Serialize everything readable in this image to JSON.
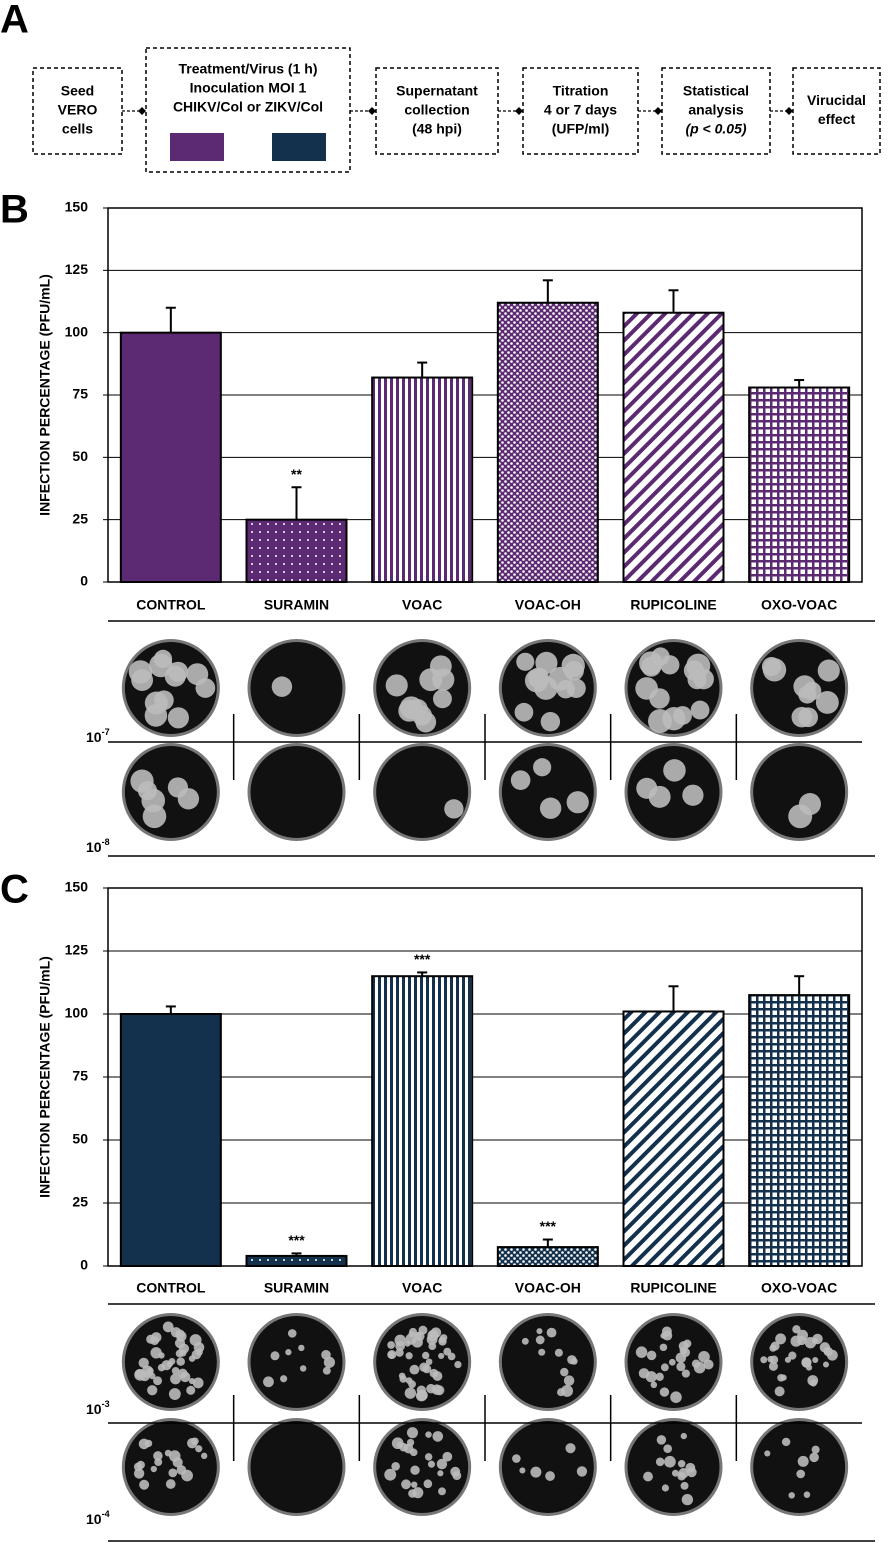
{
  "panel_labels": [
    "A",
    "B",
    "C"
  ],
  "workflow": {
    "steps": [
      {
        "lines": [
          "Seed",
          "VERO",
          "cells"
        ]
      },
      {
        "lines": [
          "Treatment/Virus (1 h)",
          "Inoculation MOI 1",
          "CHIKV/Col or ZIKV/Col"
        ]
      },
      {
        "lines": [
          "Supernatant",
          "collection",
          "(48 hpi)"
        ]
      },
      {
        "lines": [
          "Titration",
          "4 or 7 days",
          "(UFP/ml)"
        ]
      },
      {
        "lines": [
          "Statistical",
          "analysis",
          "(p < 0.05)"
        ]
      },
      {
        "lines": [
          "Virucidal",
          "effect"
        ]
      }
    ],
    "swatch_colors": [
      "#5c2a73",
      "#13304c"
    ]
  },
  "chart_data": [
    {
      "type": "bar",
      "ylabel": "INFECTION PERCENTAGE (PFU/mL)",
      "color": "#5c2a73",
      "categories": [
        "CONTROL",
        "SURAMIN",
        "VOAC",
        "VOAC-OH",
        "RUPICOLINE",
        "OXO-VOAC"
      ],
      "values": [
        100,
        25,
        82,
        112,
        108,
        78
      ],
      "errors": [
        10,
        13,
        6,
        9,
        9,
        3
      ],
      "annotations": [
        null,
        "**",
        null,
        null,
        null,
        null
      ],
      "patterns": [
        "solid",
        "dots",
        "vstripes",
        "checker",
        "diagonal",
        "grid"
      ],
      "ylim": [
        0,
        150
      ],
      "yticks": [
        0,
        25,
        50,
        75,
        100,
        125,
        150
      ],
      "grid": true,
      "dilutions": [
        {
          "base": "10",
          "exponent": "-7"
        },
        {
          "base": "10",
          "exponent": "-8"
        }
      ]
    },
    {
      "type": "bar",
      "ylabel": "INFECTION PERCENTAGE (PFU/mL)",
      "color": "#13304c",
      "categories": [
        "CONTROL",
        "SURAMIN",
        "VOAC",
        "VOAC-OH",
        "RUPICOLINE",
        "OXO-VOAC"
      ],
      "values": [
        100,
        4,
        115,
        7.5,
        101,
        107.5
      ],
      "errors": [
        3,
        1,
        1.5,
        3,
        10,
        7.5
      ],
      "annotations": [
        null,
        "***",
        "***",
        "***",
        null,
        null
      ],
      "patterns": [
        "solid",
        "dots",
        "vstripes",
        "checker",
        "diagonal",
        "grid"
      ],
      "ylim": [
        0,
        150
      ],
      "yticks": [
        0,
        25,
        50,
        75,
        100,
        125,
        150
      ],
      "grid": true,
      "dilutions": [
        {
          "base": "10",
          "exponent": "-3"
        },
        {
          "base": "10",
          "exponent": "-4"
        }
      ]
    }
  ]
}
